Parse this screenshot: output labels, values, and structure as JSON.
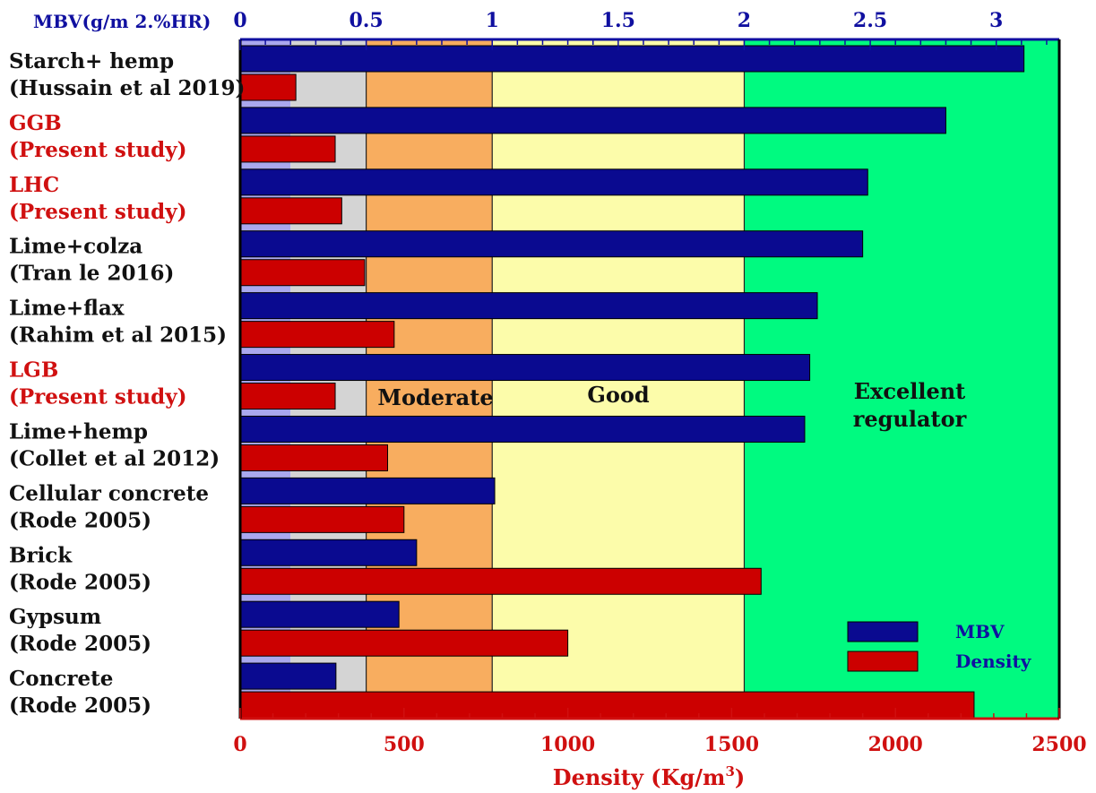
{
  "chart_data": {
    "type": "bar",
    "orientation": "horizontal",
    "top_axis": {
      "title": "MBV(g/m 2.%HR)",
      "range": [
        0,
        3.25
      ],
      "ticks": [
        "0",
        "0.5",
        "1",
        "1.5",
        "2",
        "2.5",
        "3"
      ],
      "tick_values": [
        0,
        0.5,
        1,
        1.5,
        2,
        2.5,
        3
      ],
      "color": "#1010a0"
    },
    "bottom_axis": {
      "title": "Density (Kg/m3)",
      "title_main": "Density (Kg/m",
      "title_sup": "3",
      "title_end": ")",
      "range": [
        0,
        2500
      ],
      "ticks": [
        "0",
        "500",
        "1000",
        "1500",
        "2000",
        "2500"
      ],
      "tick_values": [
        0,
        500,
        1000,
        1500,
        2000,
        2500
      ],
      "color": "#d01010"
    },
    "categories": [
      {
        "line1": "Starch+ hemp",
        "line2": "(Hussain et al 2019)",
        "color": "#111111"
      },
      {
        "line1": "GGB",
        "line2": "(Present study)",
        "color": "#d01010"
      },
      {
        "line1": "LHC",
        "line2": "(Present study)",
        "color": "#d01010"
      },
      {
        "line1": "Lime+colza",
        "line2": "(Tran le 2016)",
        "color": "#111111"
      },
      {
        "line1": "Lime+flax",
        "line2": "(Rahim et al 2015)",
        "color": "#111111"
      },
      {
        "line1": "LGB",
        "line2": "(Present study)",
        "color": "#d01010"
      },
      {
        "line1": "Lime+hemp",
        "line2": "(Collet et al 2012)",
        "color": "#111111"
      },
      {
        "line1": "Cellular concrete",
        "line2": "(Rode 2005)",
        "color": "#111111"
      },
      {
        "line1": "Brick",
        "line2": " (Rode 2005)",
        "color": "#111111"
      },
      {
        "line1": "Gypsum",
        "line2": "(Rode 2005)",
        "color": "#111111"
      },
      {
        "line1": "Concrete",
        "line2": "(Rode 2005)",
        "color": "#111111"
      }
    ],
    "series": [
      {
        "name": "MBV",
        "axis": "top",
        "color": "#0a0a90",
        "values": [
          3.11,
          2.8,
          2.49,
          2.47,
          2.29,
          2.26,
          2.24,
          1.01,
          0.7,
          0.63,
          0.38
        ]
      },
      {
        "name": "Density",
        "axis": "bottom",
        "color": "#cc0000",
        "values": [
          170,
          290,
          310,
          380,
          470,
          290,
          450,
          500,
          1590,
          1000,
          2240
        ]
      }
    ],
    "zones": [
      {
        "label": "",
        "mbv_from": 0,
        "mbv_to": 0.2,
        "color": "#aaa8ee"
      },
      {
        "label": "",
        "mbv_from": 0.2,
        "mbv_to": 0.5,
        "color": "#d4d4d4"
      },
      {
        "label": "Moderate",
        "mbv_from": 0.5,
        "mbv_to": 1.0,
        "color": "#f8ad5f"
      },
      {
        "label": "Good",
        "mbv_from": 1.0,
        "mbv_to": 2.0,
        "color": "#fcfcaa"
      },
      {
        "label": "Excellent regulator",
        "label_line1": "Excellent",
        "label_line2": "regulator",
        "mbv_from": 2.0,
        "mbv_to": 3.25,
        "color": "#00fa80"
      }
    ],
    "legend": {
      "position": "bottom-right",
      "items": [
        {
          "label": "MBV",
          "color": "#0a0a90"
        },
        {
          "label": "Density",
          "color": "#cc0000"
        }
      ]
    }
  }
}
